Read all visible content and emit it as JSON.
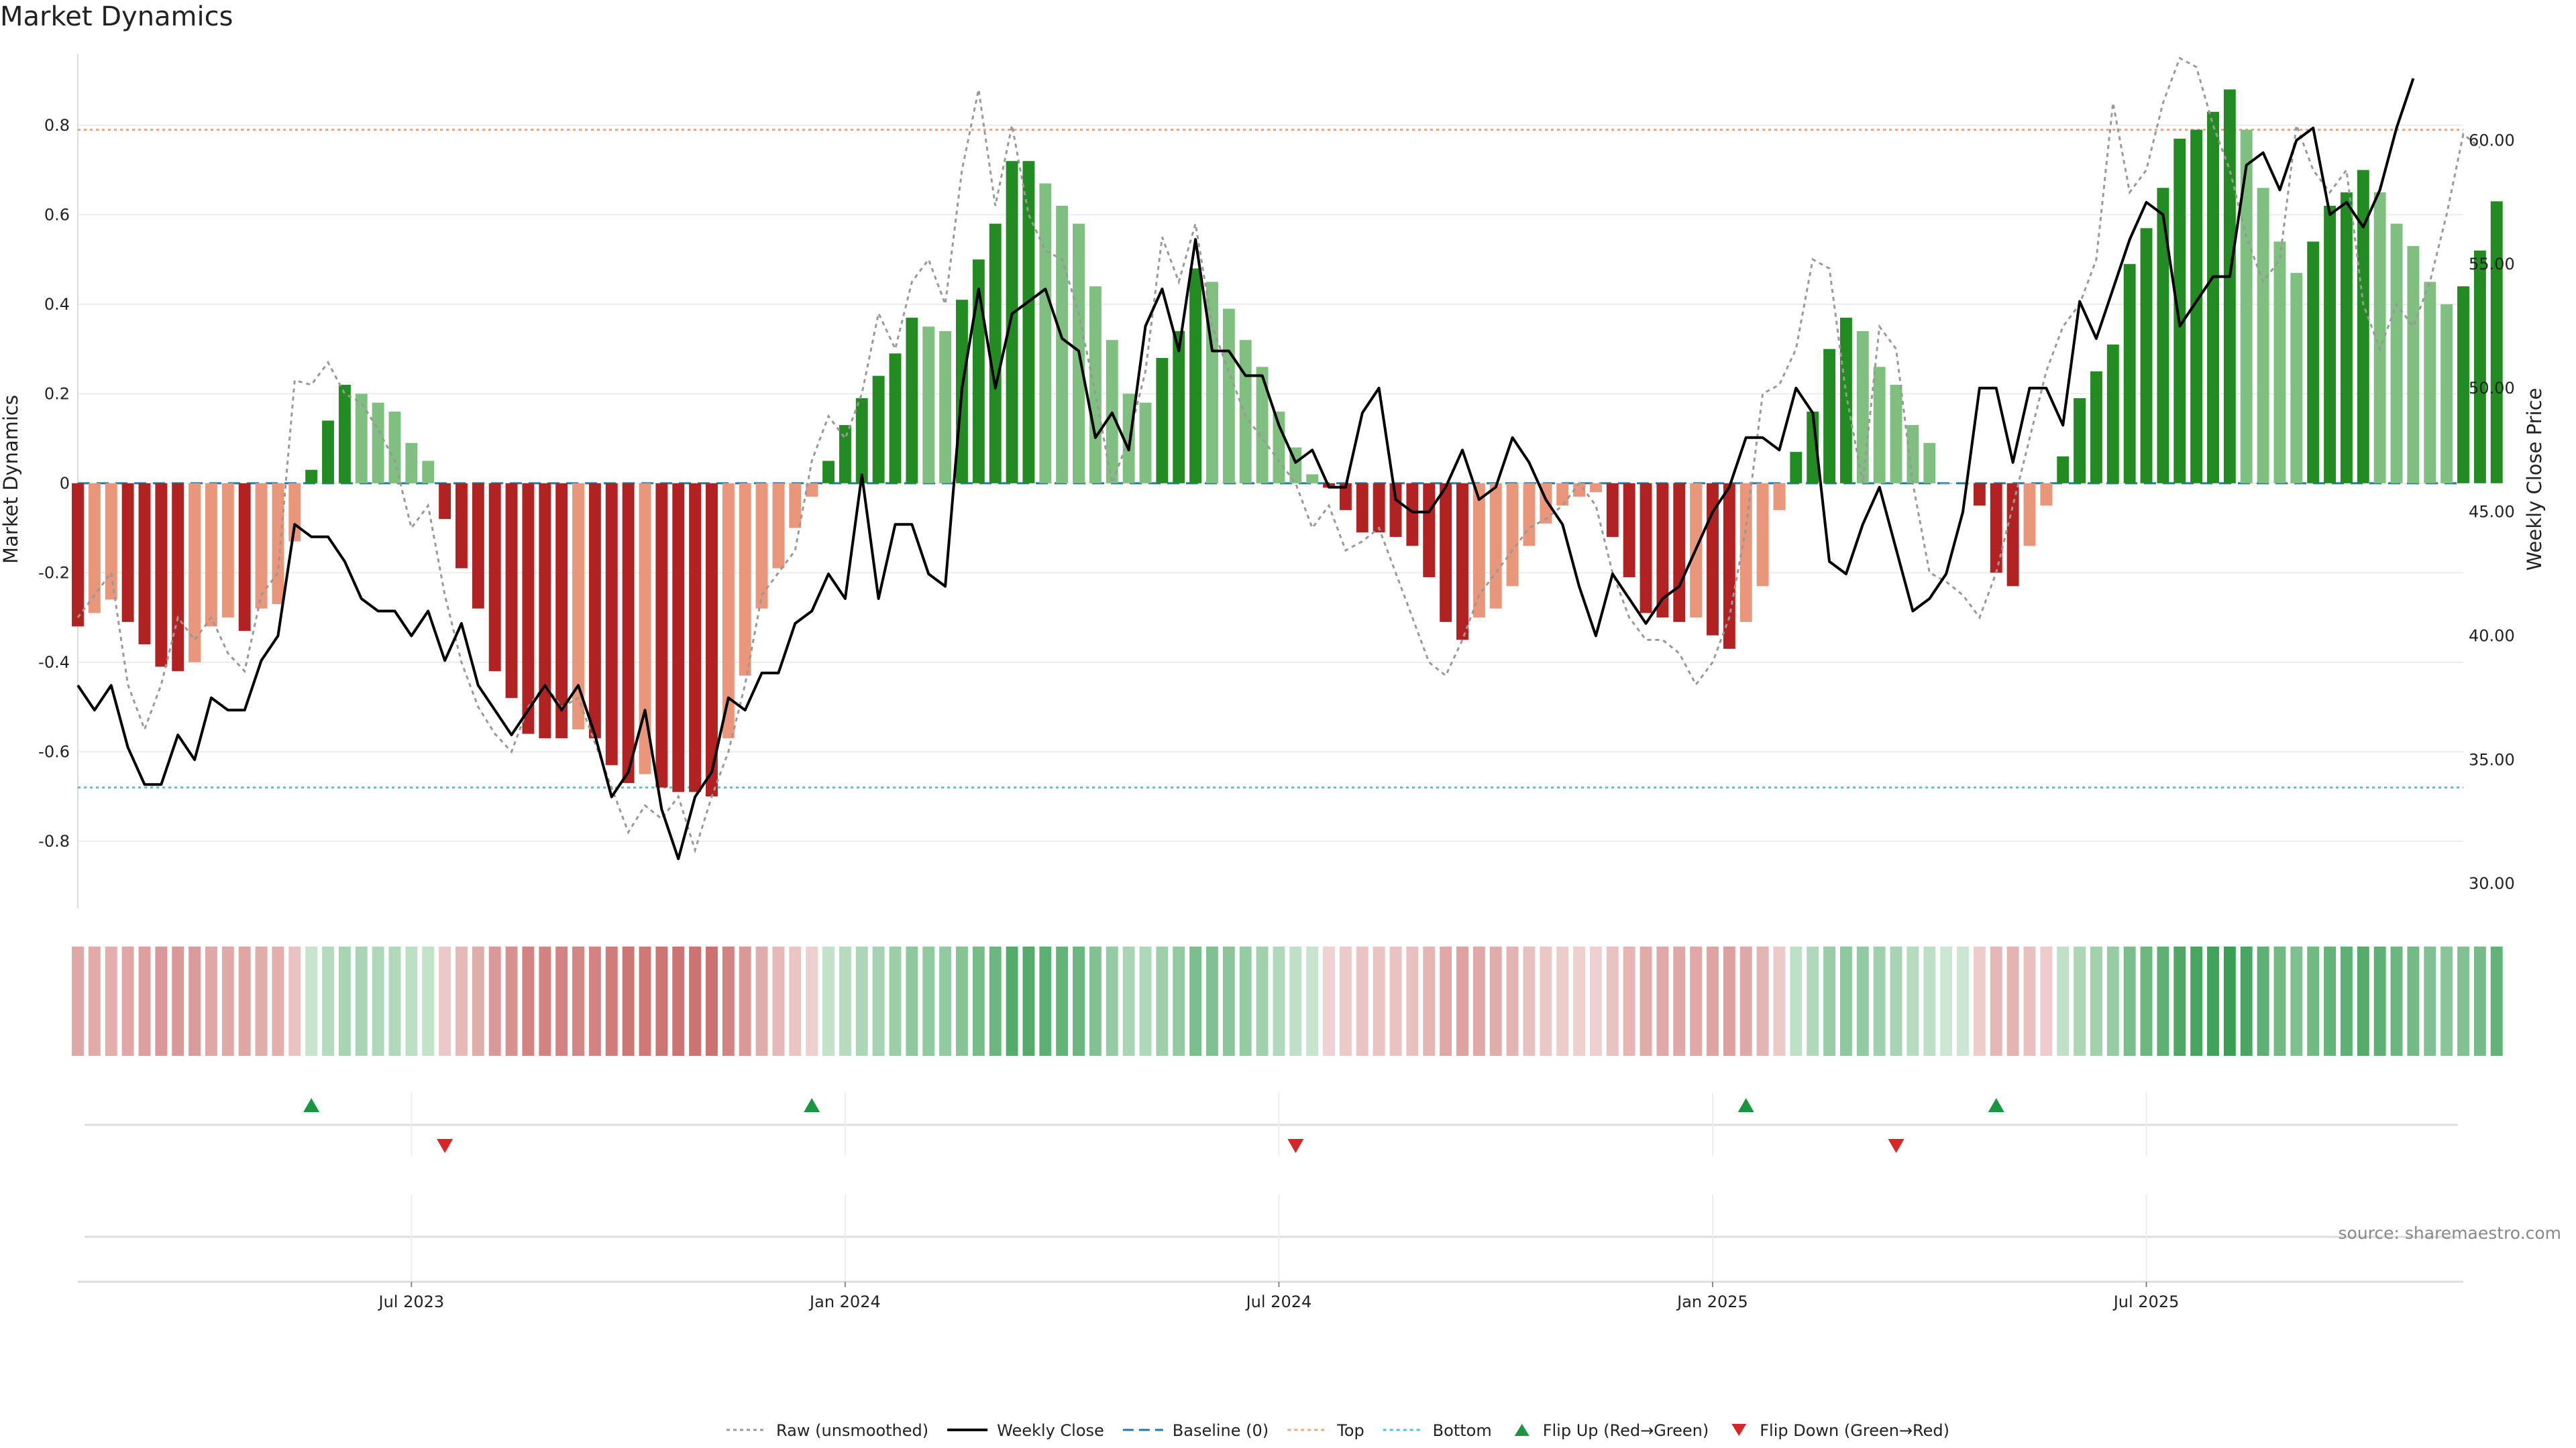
{
  "chart_data": {
    "type": "bar",
    "title": "Market Dynamics",
    "ylabel": "Market Dynamics",
    "y2label": "Weekly Close Price",
    "ylim": [
      -0.95,
      0.96
    ],
    "y2lim": [
      29,
      63.5
    ],
    "yticks": [
      "-0.8",
      "-0.6",
      "-0.4",
      "-0.2",
      "0",
      "0.2",
      "0.4",
      "0.6",
      "0.8"
    ],
    "y2ticks": [
      "30.00",
      "35.00",
      "40.00",
      "45.00",
      "50.00",
      "55.00",
      "60.00"
    ],
    "x_week_range": [
      0,
      143
    ],
    "xticks": [
      {
        "label": "Jul 2023",
        "week": 20
      },
      {
        "label": "Jan 2024",
        "week": 46
      },
      {
        "label": "Jul 2024",
        "week": 72
      },
      {
        "label": "Jan 2025",
        "week": 98
      },
      {
        "label": "Jul 2025",
        "week": 124
      }
    ],
    "top_threshold": 0.79,
    "bottom_threshold": -0.68,
    "smoothed": [
      -0.32,
      -0.29,
      -0.26,
      -0.31,
      -0.36,
      -0.41,
      -0.42,
      -0.4,
      -0.32,
      -0.3,
      -0.33,
      -0.28,
      -0.27,
      -0.13,
      0.03,
      0.14,
      0.22,
      0.2,
      0.18,
      0.16,
      0.09,
      0.05,
      -0.08,
      -0.19,
      -0.28,
      -0.42,
      -0.48,
      -0.56,
      -0.57,
      -0.57,
      -0.55,
      -0.57,
      -0.63,
      -0.67,
      -0.65,
      -0.68,
      -0.69,
      -0.69,
      -0.7,
      -0.57,
      -0.43,
      -0.28,
      -0.19,
      -0.1,
      -0.03,
      0.05,
      0.13,
      0.19,
      0.24,
      0.29,
      0.37,
      0.35,
      0.34,
      0.41,
      0.5,
      0.58,
      0.72,
      0.72,
      0.67,
      0.62,
      0.58,
      0.44,
      0.32,
      0.2,
      0.18,
      0.28,
      0.34,
      0.48,
      0.45,
      0.39,
      0.32,
      0.26,
      0.16,
      0.08,
      0.02,
      -0.01,
      -0.06,
      -0.11,
      -0.11,
      -0.12,
      -0.14,
      -0.21,
      -0.31,
      -0.35,
      -0.3,
      -0.28,
      -0.23,
      -0.14,
      -0.09,
      -0.05,
      -0.03,
      -0.02,
      -0.12,
      -0.21,
      -0.29,
      -0.3,
      -0.31,
      -0.3,
      -0.34,
      -0.37,
      -0.31,
      -0.23,
      -0.06,
      0.07,
      0.16,
      0.3,
      0.37,
      0.34,
      0.26,
      0.22,
      0.13,
      0.09,
      0.0,
      0.0,
      -0.05,
      -0.2,
      -0.23,
      -0.14,
      -0.05,
      0.06,
      0.19,
      0.25,
      0.31,
      0.49,
      0.57,
      0.66,
      0.77,
      0.79,
      0.83,
      0.88,
      0.79,
      0.66,
      0.54,
      0.47,
      0.54,
      0.62,
      0.65,
      0.7,
      0.65,
      0.58,
      0.53,
      0.45,
      0.4,
      0.44,
      0.52,
      0.63
    ],
    "raw": [
      -0.3,
      -0.25,
      -0.2,
      -0.45,
      -0.55,
      -0.45,
      -0.3,
      -0.35,
      -0.3,
      -0.38,
      -0.42,
      -0.25,
      -0.2,
      0.23,
      0.22,
      0.27,
      0.2,
      0.18,
      0.12,
      0.05,
      -0.1,
      -0.05,
      -0.25,
      -0.4,
      -0.5,
      -0.56,
      -0.6,
      -0.5,
      -0.45,
      -0.5,
      -0.48,
      -0.58,
      -0.68,
      -0.78,
      -0.72,
      -0.75,
      -0.7,
      -0.82,
      -0.7,
      -0.6,
      -0.45,
      -0.25,
      -0.2,
      -0.15,
      0.05,
      0.15,
      0.1,
      0.2,
      0.38,
      0.3,
      0.45,
      0.5,
      0.4,
      0.7,
      0.88,
      0.62,
      0.8,
      0.6,
      0.52,
      0.5,
      0.38,
      0.2,
      0.0,
      0.1,
      0.25,
      0.55,
      0.45,
      0.58,
      0.35,
      0.25,
      0.15,
      0.1,
      0.05,
      0.0,
      -0.1,
      -0.05,
      -0.15,
      -0.13,
      -0.1,
      -0.2,
      -0.3,
      -0.4,
      -0.43,
      -0.35,
      -0.25,
      -0.2,
      -0.15,
      -0.1,
      -0.08,
      -0.05,
      0.0,
      -0.05,
      -0.2,
      -0.3,
      -0.35,
      -0.35,
      -0.38,
      -0.45,
      -0.4,
      -0.3,
      -0.1,
      0.2,
      0.22,
      0.3,
      0.5,
      0.48,
      0.2,
      0.0,
      0.35,
      0.3,
      0.0,
      -0.2,
      -0.22,
      -0.25,
      -0.3,
      -0.2,
      -0.05,
      0.1,
      0.25,
      0.35,
      0.4,
      0.5,
      0.85,
      0.65,
      0.7,
      0.85,
      0.95,
      0.93,
      0.8,
      0.7,
      0.55,
      0.45,
      0.5,
      0.8,
      0.7,
      0.65,
      0.7,
      0.4,
      0.3,
      0.4,
      0.35,
      0.45,
      0.6,
      0.78,
      0.75
    ],
    "weekly_close": [
      38,
      37,
      38,
      35.5,
      34,
      34,
      36,
      35,
      37.5,
      37,
      37,
      39,
      40,
      44.5,
      44,
      44,
      43,
      41.5,
      41,
      41,
      40,
      41,
      39,
      40.5,
      38,
      37,
      36,
      37,
      38,
      37,
      38,
      36,
      33.5,
      34.5,
      37,
      33,
      31,
      33.5,
      34.5,
      37.5,
      37,
      38.5,
      38.5,
      40.5,
      41,
      42.5,
      41.5,
      46.5,
      41.5,
      44.5,
      44.5,
      42.5,
      42,
      50,
      54,
      50,
      53,
      53.5,
      54,
      52,
      51.5,
      48,
      49,
      47.5,
      52.5,
      54,
      51.5,
      56,
      51.5,
      51.5,
      50.5,
      50.5,
      48.5,
      47,
      47.5,
      46,
      46,
      49,
      50,
      45.5,
      45,
      45,
      46,
      47.5,
      45.5,
      46,
      48,
      47,
      45.5,
      44.5,
      42,
      40,
      42.5,
      41.5,
      40.5,
      41.5,
      42,
      43.5,
      45,
      46,
      48,
      48,
      47.5,
      50,
      49,
      43,
      42.5,
      44.5,
      46,
      43.5,
      41,
      41.5,
      42.5,
      45,
      50,
      50,
      47,
      50,
      50,
      48.5,
      53.5,
      52,
      54,
      56,
      57.5,
      57,
      52.5,
      53.5,
      54.5,
      54.5,
      59,
      59.5,
      58,
      60,
      60.5,
      57,
      57.5,
      56.5,
      58,
      60.5,
      62.5
    ],
    "baseline_label": "Baseline (0)",
    "flip_up_weeks": [
      14,
      44,
      100,
      115
    ],
    "flip_down_weeks": [
      22,
      73,
      109
    ],
    "legend": [
      {
        "name": "Raw (unsmoothed)",
        "style": "dotted-line",
        "color": "#999999"
      },
      {
        "name": "Weekly Close",
        "style": "line",
        "color": "#000000"
      },
      {
        "name": "Baseline (0)",
        "style": "dashed-line",
        "color": "#1f77b4"
      },
      {
        "name": "Top",
        "style": "dotted-line",
        "color": "#f0a580"
      },
      {
        "name": "Bottom",
        "style": "dotted-line",
        "color": "#4fc3d6"
      },
      {
        "name": "Flip Up (Red→Green)",
        "style": "triangle-up",
        "color": "#1a9641"
      },
      {
        "name": "Flip Down (Green→Red)",
        "style": "triangle-down",
        "color": "#d62728"
      }
    ],
    "legend_position": "bottom-center",
    "grid": true,
    "colors": {
      "pos_strong": "#228b22",
      "pos_weak": "#7fbf7f",
      "neg_strong": "#b22222",
      "neg_weak": "#e9967a",
      "raw": "#999999",
      "close": "#000000",
      "baseline": "#1f77b4",
      "top": "#f0a580",
      "bottom": "#4fc3d6",
      "flip_up": "#1a9641",
      "flip_down": "#d62728"
    },
    "source": "source: sharemaestro.com"
  }
}
